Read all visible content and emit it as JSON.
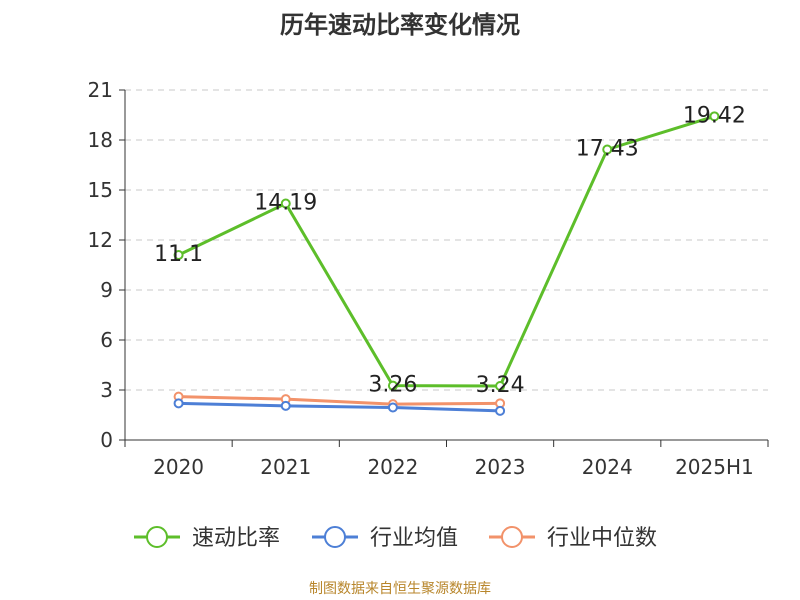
{
  "chart_data": {
    "type": "line",
    "title": "历年速动比率变化情况",
    "categories": [
      "2020",
      "2021",
      "2022",
      "2023",
      "2024",
      "2025H1"
    ],
    "ylim": [
      0,
      21
    ],
    "yticks": [
      0,
      3,
      6,
      9,
      12,
      15,
      18,
      21
    ],
    "grid": true,
    "legend_position": "bottom",
    "series": [
      {
        "name": "速动比率",
        "color": "#5dbe2a",
        "values": [
          11.1,
          14.19,
          3.26,
          3.24,
          17.43,
          19.42
        ],
        "labels": [
          "11.1",
          "14.19",
          "3.26",
          "3.24",
          "17.43",
          "19.42"
        ]
      },
      {
        "name": "行业均值",
        "color": "#4d7fd6",
        "values": [
          2.2,
          2.05,
          1.95,
          1.75,
          null,
          null
        ]
      },
      {
        "name": "行业中位数",
        "color": "#f2926a",
        "values": [
          2.6,
          2.45,
          2.15,
          2.2,
          null,
          null
        ]
      }
    ]
  },
  "footer": {
    "source": "制图数据来自恒生聚源数据库"
  }
}
